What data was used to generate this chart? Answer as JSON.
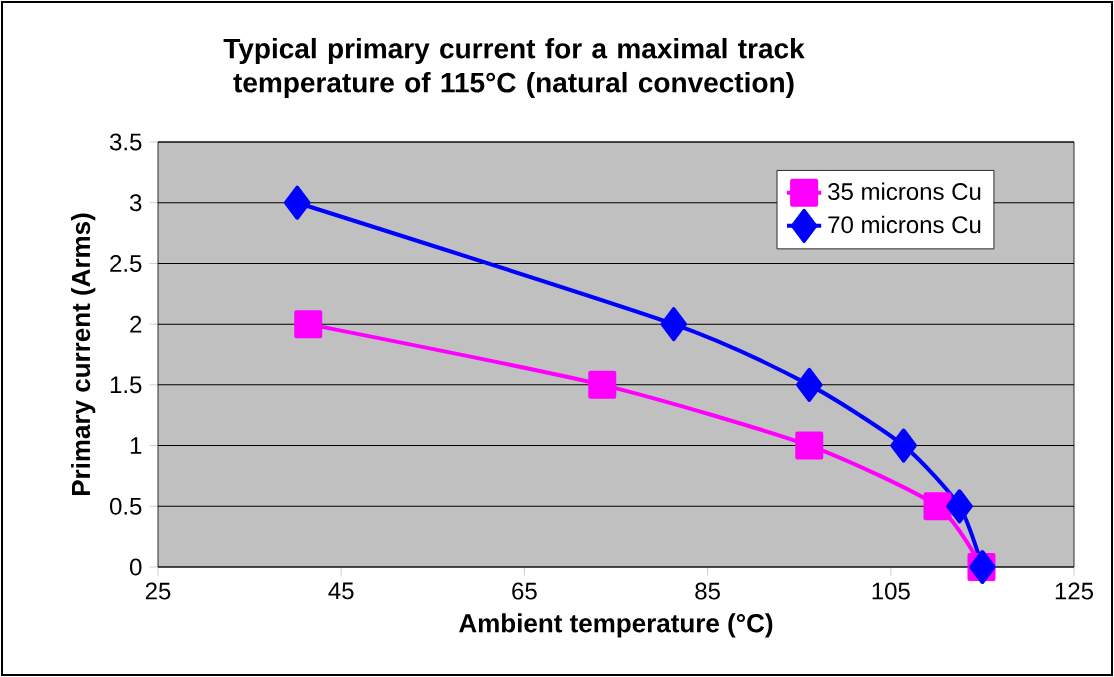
{
  "chart_data": {
    "type": "line",
    "title": "Typical primary current for a maximal track temperature of 115°C (natural convection)",
    "xlabel": "Ambient temperature (°C)",
    "ylabel": "Primary current (Arms)",
    "xlim": [
      25,
      125
    ],
    "xticks": [
      25,
      45,
      65,
      85,
      105,
      125
    ],
    "ylim": [
      0,
      3.5
    ],
    "yticks": [
      0,
      0.5,
      1,
      1.5,
      2,
      2.5,
      3,
      3.5
    ],
    "grid": "y",
    "legend": "top right",
    "series": [
      {
        "name": "35 microns Cu",
        "color": "#ff00ff",
        "marker": "square",
        "x": [
          41.4,
          73.5,
          96.1,
          110.1,
          114.9
        ],
        "values": [
          2,
          1.5,
          1,
          0.5,
          0
        ]
      },
      {
        "name": "70 microns Cu",
        "color": "#0000ff",
        "marker": "diamond",
        "x": [
          40.2,
          81.3,
          96.1,
          106.4,
          112.5,
          115
        ],
        "values": [
          3,
          2,
          1.5,
          1,
          0.5,
          0
        ]
      }
    ]
  }
}
